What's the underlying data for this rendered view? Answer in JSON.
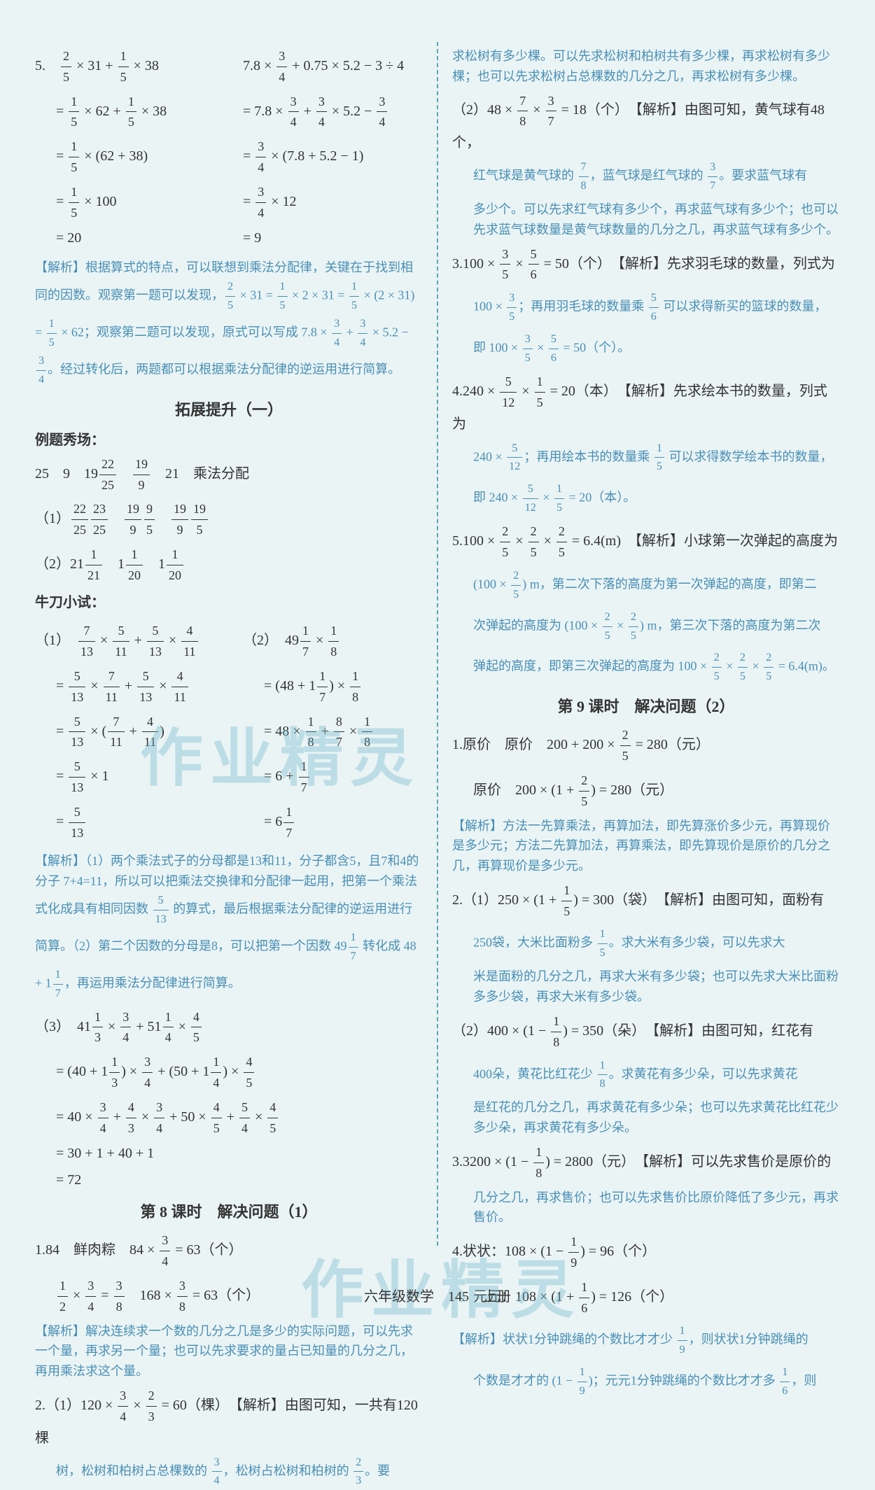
{
  "left": {
    "p5": {
      "colA": [
        "5.　2/5 × 31 + 1/5 × 38",
        "= 1/5 × 62 + 1/5 × 38",
        "= 1/5 × (62 + 38)",
        "= 1/5 × 100",
        "= 20"
      ],
      "colB": [
        "7.8 × 3/4 + 0.75 × 5.2 − 3 ÷ 4",
        "= 7.8 × 3/4 + 3/4 × 5.2 − 3/4",
        "= 3/4 × (7.8 + 5.2 − 1)",
        "= 3/4 × 12",
        "= 9"
      ],
      "analysis": "【解析】根据算式的特点，可以联想到乘法分配律，关键在于找到相同的因数。观察第一题可以发现，2/5 × 31 = 1/5 × 2 × 31 = 1/5 × (2 × 31) = 1/5 × 62；观察第二题可以发现，原式可以写成 7.8 × 3/4 + 3/4 × 5.2 − 3/4。经过转化后，两题都可以根据乘法分配律的逆运用进行简算。"
    },
    "ext_heading": "拓展提升（一）",
    "ext_sub1": "例题秀场：",
    "ext_line1": "25　9　19　22/25　19/9　21　乘法分配",
    "ext_line2": "（1）22/25　23/25　19/9　9/5　19/9　19/5",
    "ext_line3": "（2）21　1/21　1　1/20　1　1/20",
    "ext_sub2": "牛刀小试：",
    "niu1": {
      "colA": [
        "（1）　7/13 × 5/11 + 5/13 × 4/11",
        "= 5/13 × 7/11 + 5/13 × 4/11",
        "= 5/13 × (7/11 + 4/11)",
        "= 5/13 × 1",
        "= 5/13"
      ],
      "colB": [
        "（2）　49 1/7 × 1/8",
        "= (48 + 1 1/7) × 1/8",
        "= 48 × 1/8 + 8/7 × 1/8",
        "= 6 + 1/7",
        "= 6 1/7"
      ]
    },
    "niu_analysis": "【解析】（1）两个乘法式子的分母都是13和11，分子都含5，且7和4的分子 7+4=11，所以可以把乘法交换律和分配律一起用，把第一个乘法式化成具有相同因数 5/13 的算式，最后根据乘法分配律的逆运用进行简算。（2）第二个因数的分母是8，可以把第一个因数 49 1/7 转化成 48 + 1 1/7，再运用乘法分配律进行简算。",
    "niu3": [
      "（3）　41 1/3 × 3/4 + 51 1/4 × 4/5",
      "= (40 + 1 1/3) × 3/4 + (50 + 1 1/4) × 4/5",
      "= 40 × 3/4 + 4/3 × 3/4 + 50 × 4/5 + 5/4 × 4/5",
      "= 30 + 1 + 40 + 1",
      "= 72"
    ],
    "lesson8_heading": "第 8 课时　解决问题（1）",
    "l8_1a": "1.84　鲜肉粽　84 × 3/4 = 63（个）",
    "l8_1b": "1/2 × 3/4 = 3/8　168 × 3/8 = 63（个）",
    "l8_1_analysis": "【解析】解决连续求一个数的几分之几是多少的实际问题，可以先求一个量，再求另一个量；也可以先求要求的量占已知量的几分之几，再用乘法求这个量。",
    "l8_2a": "2.（1）120 × 3/4 × 2/3 = 60（棵）　【解析】由图可知，一共有120棵",
    "l8_2b": "树，松树和柏树占总棵数的 3/4，松树占松树和柏树的 2/3。要"
  },
  "right": {
    "r_top": [
      "求松树有多少棵。可以先求松树和柏树共有多少棵，再求松树有多少棵；也可以先求松树占总棵数的几分之几，再求松树有多少棵。",
      "（2）48 × 7/8 × 3/7 = 18（个）　【解析】由图可知，黄气球有48个，",
      "红气球是黄气球的 7/8，蓝气球是红气球的 3/7。要求蓝气球有",
      "多少个。可以先求红气球有多少个，再求蓝气球有多少个；也可以先求蓝气球数量是黄气球数量的几分之几，再求蓝气球有多少个。"
    ],
    "r3a": "3.100 × 3/5 × 5/6 = 50（个）　【解析】先求羽毛球的数量，列式为",
    "r3b": "100 × 3/5；再用羽毛球的数量乘 5/6 可以求得新买的篮球的数量，",
    "r3c": "即 100 × 3/5 × 5/6 = 50（个）。",
    "r4a": "4.240 × 5/12 × 1/5 = 20（本）　【解析】先求绘本书的数量，列式为",
    "r4b": "240 × 5/12；再用绘本书的数量乘 1/5 可以求得数学绘本书的数量，",
    "r4c": "即 240 × 5/12 × 1/5 = 20（本）。",
    "r5a": "5.100 × 2/5 × 2/5 × 2/5 = 6.4(m)　【解析】小球第一次弹起的高度为",
    "r5b": "(100 × 2/5) m，第二次下落的高度为第一次弹起的高度，即第二",
    "r5c": "次弹起的高度为 (100 × 2/5 × 2/5) m，第三次下落的高度为第二次",
    "r5d": "弹起的高度，即第三次弹起的高度为 100 × 2/5 × 2/5 × 2/5 = 6.4(m)。",
    "lesson9_heading": "第 9 课时　解决问题（2）",
    "l9_1a": "1.原价　原价　200 + 200 × 2/5 = 280（元）",
    "l9_1b": "原价　200 × (1 + 2/5) = 280（元）",
    "l9_1_analysis": "【解析】方法一先算乘法，再算加法，即先算涨价多少元，再算现价是多少元；方法二先算加法，再算乘法，即先算现价是原价的几分之几，再算现价是多少元。",
    "l9_2a": "2.（1）250 × (1 + 1/5) = 300（袋）　【解析】由图可知，面粉有",
    "l9_2b": "250袋，大米比面粉多 1/5。求大米有多少袋，可以先求大",
    "l9_2c": "米是面粉的几分之几，再求大米有多少袋；也可以先求大米比面粉多多少袋，再求大米有多少袋。",
    "l9_2d": "（2）400 × (1 − 1/8) = 350（朵）　【解析】由图可知，红花有",
    "l9_2e": "400朵，黄花比红花少 1/8。求黄花有多少朵，可以先求黄花",
    "l9_2f": "是红花的几分之几，再求黄花有多少朵；也可以先求黄花比红花少多少朵，再求黄花有多少朵。",
    "l9_3a": "3.3200 × (1 − 1/8) = 2800（元）　【解析】可以先求售价是原价的",
    "l9_3b": "几分之几，再求售价；也可以先求售价比原价降低了多少元，再求售价。",
    "l9_4a": "4.状状：108 × (1 − 1/9) = 96（个）",
    "l9_4b": "元元：108 × (1 + 1/6) = 126（个）",
    "l9_4c": "【解析】状状1分钟跳绳的个数比才才少 1/9，则状状1分钟跳绳的",
    "l9_4d": "个数是才才的 (1 − 1/9)；元元1分钟跳绳的个数比才才多 1/6，则"
  },
  "footer": "六年级数学　145　上册",
  "watermark": "作业精灵",
  "colors": {
    "blue": "#4a8fb5",
    "black": "#333333",
    "bg": "#eaf4f5",
    "divider": "#5aa8b5",
    "watermark": "#6bb5cc"
  }
}
